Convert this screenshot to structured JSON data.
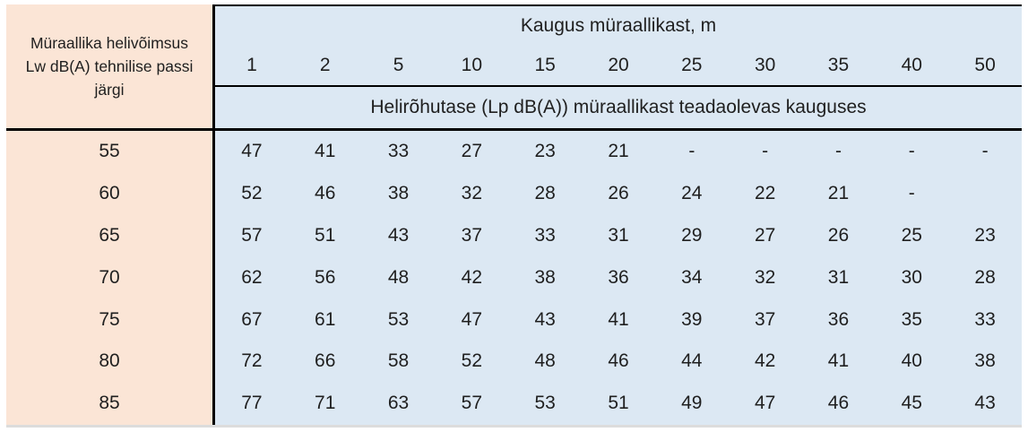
{
  "colors": {
    "peach": "#fbe5d6",
    "blue": "#dce8f3",
    "border": "#000000",
    "text": "#1f1f1f"
  },
  "table": {
    "row_header_lines": [
      "Müraallika helivõimsus",
      "Lw dB(A) tehnilise passi",
      "järgi"
    ],
    "distance_header": "Kaugus müraallikast, m",
    "distances": [
      "1",
      "2",
      "5",
      "10",
      "15",
      "20",
      "25",
      "30",
      "35",
      "40",
      "50"
    ],
    "subheader": "Helirõhutase (Lp dB(A)) müraallikast teadaolevas kauguses",
    "rows": [
      {
        "lw": "55",
        "values": [
          "47",
          "41",
          "33",
          "27",
          "23",
          "21",
          "-",
          "-",
          "-",
          "-",
          "-"
        ]
      },
      {
        "lw": "60",
        "values": [
          "52",
          "46",
          "38",
          "32",
          "28",
          "26",
          "24",
          "22",
          "21",
          "-",
          ""
        ]
      },
      {
        "lw": "65",
        "values": [
          "57",
          "51",
          "43",
          "37",
          "33",
          "31",
          "29",
          "27",
          "26",
          "25",
          "23"
        ]
      },
      {
        "lw": "70",
        "values": [
          "62",
          "56",
          "48",
          "42",
          "38",
          "36",
          "34",
          "32",
          "31",
          "30",
          "28"
        ]
      },
      {
        "lw": "75",
        "values": [
          "67",
          "61",
          "53",
          "47",
          "43",
          "41",
          "39",
          "37",
          "36",
          "35",
          "33"
        ]
      },
      {
        "lw": "80",
        "values": [
          "72",
          "66",
          "58",
          "52",
          "48",
          "46",
          "44",
          "42",
          "41",
          "40",
          "38"
        ]
      },
      {
        "lw": "85",
        "values": [
          "77",
          "71",
          "63",
          "57",
          "53",
          "51",
          "49",
          "47",
          "46",
          "45",
          "43"
        ]
      }
    ]
  },
  "chart_data": {
    "type": "table",
    "title": "Kaugus müraallikast, m",
    "subtitle": "Helirõhutase (Lp dB(A)) müraallikast teadaolevas kauguses",
    "row_header_label": "Müraallika helivõimsus Lw dB(A) tehnilise passi järgi",
    "columns": [
      1,
      2,
      5,
      10,
      15,
      20,
      25,
      30,
      35,
      40,
      50
    ],
    "rows": [
      {
        "lw": 55,
        "lp": [
          47,
          41,
          33,
          27,
          23,
          21,
          null,
          null,
          null,
          null,
          null
        ]
      },
      {
        "lw": 60,
        "lp": [
          52,
          46,
          38,
          32,
          28,
          26,
          24,
          22,
          21,
          null,
          null
        ]
      },
      {
        "lw": 65,
        "lp": [
          57,
          51,
          43,
          37,
          33,
          31,
          29,
          27,
          26,
          25,
          23
        ]
      },
      {
        "lw": 70,
        "lp": [
          62,
          56,
          48,
          42,
          38,
          36,
          34,
          32,
          31,
          30,
          28
        ]
      },
      {
        "lw": 75,
        "lp": [
          67,
          61,
          53,
          47,
          43,
          41,
          39,
          37,
          36,
          35,
          33
        ]
      },
      {
        "lw": 80,
        "lp": [
          72,
          66,
          58,
          52,
          48,
          46,
          44,
          42,
          41,
          40,
          38
        ]
      },
      {
        "lw": 85,
        "lp": [
          77,
          71,
          63,
          57,
          53,
          51,
          49,
          47,
          46,
          45,
          43
        ]
      }
    ]
  }
}
